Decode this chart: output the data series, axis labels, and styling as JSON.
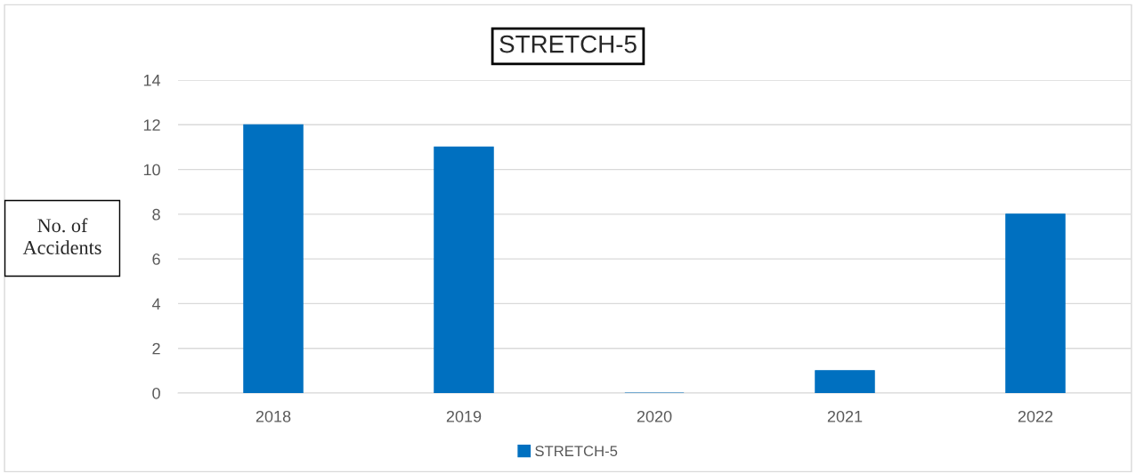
{
  "chart_data": {
    "type": "bar",
    "title": "STRETCH-5",
    "ylabel": "No. of\nAccidents",
    "categories": [
      "2018",
      "2019",
      "2020",
      "2021",
      "2022"
    ],
    "series": [
      {
        "name": "STRETCH-5",
        "color": "#0070c0",
        "values": [
          12,
          11,
          0,
          1,
          8
        ]
      }
    ],
    "ylim": [
      0,
      14
    ],
    "yticks": [
      0,
      2,
      4,
      6,
      8,
      10,
      12,
      14
    ],
    "grid": "y",
    "legend": "bottom"
  }
}
